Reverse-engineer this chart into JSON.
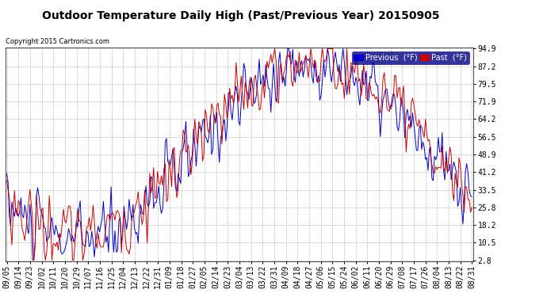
{
  "title": "Outdoor Temperature Daily High (Past/Previous Year) 20150905",
  "copyright": "Copyright 2015 Cartronics.com",
  "ylabel_ticks": [
    2.8,
    10.5,
    18.2,
    25.8,
    33.5,
    41.2,
    48.9,
    56.5,
    64.2,
    71.9,
    79.5,
    87.2,
    94.9
  ],
  "x_labels": [
    "09/05",
    "09/14",
    "09/23",
    "10/02",
    "10/11",
    "10/20",
    "10/29",
    "11/07",
    "11/16",
    "11/25",
    "12/04",
    "12/13",
    "12/22",
    "12/31",
    "01/09",
    "01/18",
    "01/27",
    "02/05",
    "02/14",
    "02/23",
    "03/04",
    "03/13",
    "03/22",
    "03/31",
    "04/09",
    "04/18",
    "04/27",
    "05/06",
    "05/15",
    "05/24",
    "06/02",
    "06/11",
    "06/20",
    "06/29",
    "07/08",
    "07/17",
    "07/26",
    "08/04",
    "08/13",
    "08/22",
    "08/31"
  ],
  "background_color": "#ffffff",
  "grid_color": "#bbbbbb",
  "previous_color": "#0000cc",
  "past_color": "#cc0000",
  "title_fontsize": 10,
  "axis_fontsize": 7,
  "legend_fontsize": 7,
  "ylim": [
    2.8,
    94.9
  ],
  "n_days": 362,
  "noise_scale": 10,
  "seasonal_amplitude": 38,
  "seasonal_baseline": 50,
  "seasonal_shift": 145
}
